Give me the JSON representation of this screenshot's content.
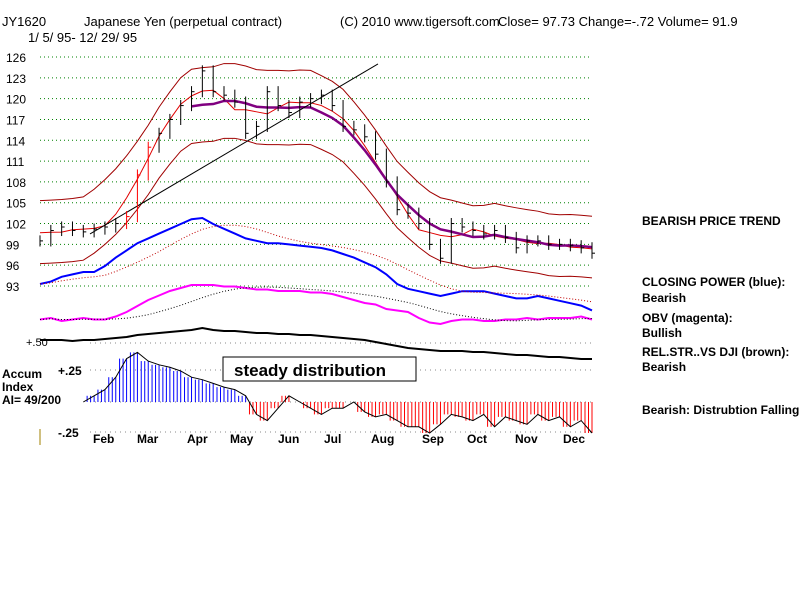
{
  "header": {
    "symbol": "JY1620",
    "name": "Japanese Yen (perpetual contract)",
    "copyright": "(C) 2010 www.tigersoft.com",
    "stats": "Close=  97.73  Change=-.72 Volume= 91.9",
    "date_range": "1/ 5/ 95- 12/ 29/ 95"
  },
  "annotations": {
    "trend": "BEARISH PRICE TREND",
    "cp_title": "CLOSING POWER (blue):",
    "cp_value": "Bearish",
    "obv_title": "OBV (magenta):",
    "obv_value": "Bullish",
    "rs_title": "REL.STR..VS DJI (brown):",
    "rs_value": "Bearish",
    "ai_status": "Bearish: Distrubtion Falling.",
    "box": "steady distribution",
    "accum1": "Accum",
    "accum2": "Index",
    "ai": "AI= 49/200",
    "plus50": "+.50",
    "plus25": "+.25",
    "minus25": "-.25"
  },
  "chart_data": {
    "type": "line",
    "title": "Japanese Yen (perpetual contract)",
    "ylim": [
      93,
      126
    ],
    "yticks": [
      126,
      123,
      120,
      117,
      114,
      111,
      108,
      105,
      102,
      99,
      96,
      93
    ],
    "months": [
      "Feb",
      "Mar",
      "Apr",
      "May",
      "Jun",
      "Jul",
      "Aug",
      "Sep",
      "Oct",
      "Nov",
      "Dec"
    ],
    "price_close": [
      99.5,
      101,
      101.5,
      101,
      100.8,
      101.2,
      101.5,
      102,
      103,
      109,
      113,
      115,
      117,
      119,
      121,
      124,
      121,
      120.5,
      119.5,
      115,
      116,
      121,
      119,
      118,
      119.5,
      120,
      120.5,
      119,
      116,
      115.5,
      114.5,
      112,
      108,
      104,
      103.5,
      102,
      99,
      97,
      102,
      101.5,
      101,
      100.5,
      101,
      100,
      98.5,
      99.5,
      99.5,
      99,
      99,
      98.8,
      98.5,
      97.73
    ],
    "closing_power": [
      30,
      32,
      36,
      38,
      40,
      40,
      45,
      52,
      58,
      64,
      68,
      72,
      76,
      80,
      84,
      85,
      80,
      76,
      72,
      68,
      66,
      64,
      64,
      63,
      62,
      61,
      60,
      58,
      55,
      52,
      48,
      44,
      38,
      30,
      26,
      24,
      22,
      20,
      22,
      24,
      24,
      24,
      22,
      20,
      18,
      18,
      20,
      18,
      16,
      14,
      12,
      8
    ],
    "obv": [
      17,
      18,
      16,
      17,
      18,
      17,
      17,
      19,
      22,
      26,
      30,
      33,
      36,
      38,
      40,
      40,
      40,
      39,
      39,
      38,
      37,
      37,
      36,
      36,
      36,
      35,
      35,
      34,
      32,
      30,
      28,
      27,
      24,
      23,
      22,
      18,
      15,
      14,
      16,
      17,
      17,
      16,
      16,
      17,
      17,
      18,
      17,
      18,
      18,
      18,
      19,
      17
    ],
    "rel_str": [
      20,
      20,
      20,
      19,
      20,
      20,
      21,
      22,
      23,
      25,
      26,
      27,
      28,
      29,
      30,
      32,
      30,
      29,
      29,
      28,
      27,
      27,
      26,
      26,
      25,
      25,
      24,
      23,
      22,
      21,
      20,
      18,
      16,
      14,
      12,
      11,
      10,
      9,
      9,
      9,
      8,
      8,
      7,
      6,
      5,
      5,
      4,
      3,
      3,
      2,
      1,
      1
    ],
    "accum_index": [
      -0.05,
      -0.2,
      -0.25,
      -0.1,
      0.0,
      0.05,
      0.1,
      0.2,
      0.35,
      0.4,
      0.33,
      0.3,
      0.28,
      0.25,
      0.2,
      0.18,
      0.15,
      0.12,
      0.1,
      0.05,
      -0.1,
      -0.15,
      -0.05,
      0.05,
      0.0,
      -0.05,
      -0.1,
      -0.05,
      -0.05,
      0.0,
      -0.08,
      -0.12,
      -0.1,
      -0.15,
      -0.2,
      -0.2,
      -0.25,
      -0.18,
      -0.1,
      -0.12,
      -0.15,
      -0.1,
      -0.2,
      -0.12,
      -0.15,
      -0.18,
      -0.1,
      -0.15,
      -0.12,
      -0.2,
      -0.15,
      -0.25
    ]
  },
  "colors": {
    "price": "#000000",
    "band": "#e00000",
    "ma": "#800080",
    "cp": "#0000ff",
    "obv": "#ff00ff",
    "rs": "#000000",
    "grid": "#008000",
    "acc_pos": "#0000ff",
    "acc_neg": "#ff0000"
  }
}
